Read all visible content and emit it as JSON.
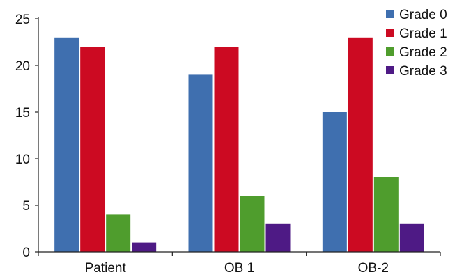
{
  "chart_data": {
    "type": "bar",
    "categories": [
      "Patient",
      "OB 1",
      "OB-2"
    ],
    "series": [
      {
        "name": "Grade 0",
        "color": "#3f6faf",
        "values": [
          23,
          19,
          15
        ]
      },
      {
        "name": "Grade 1",
        "color": "#cc0a22",
        "values": [
          22,
          22,
          23
        ]
      },
      {
        "name": "Grade 2",
        "color": "#4f9d2d",
        "values": [
          4,
          6,
          8
        ]
      },
      {
        "name": "Grade 3",
        "color": "#4e1a85",
        "values": [
          1,
          3,
          3
        ]
      }
    ],
    "yticks": [
      0,
      5,
      10,
      15,
      20,
      25
    ],
    "ylim": [
      0,
      25
    ],
    "title": "",
    "xlabel": "",
    "ylabel": "",
    "grid": false,
    "legend": "top-right"
  }
}
